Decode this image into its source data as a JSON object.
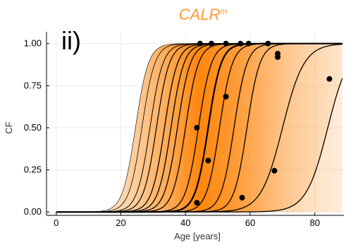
{
  "chart_data": {
    "type": "line",
    "title": "CALR",
    "title_superscript": "m",
    "panel_label": "ii)",
    "xlabel": "Age [years]",
    "ylabel": "CF",
    "xlim": [
      -3,
      89
    ],
    "ylim": [
      -0.02,
      1.07
    ],
    "x_ticks": [
      0,
      20,
      40,
      60,
      80
    ],
    "y_ticks": [
      0.0,
      0.25,
      0.5,
      0.75,
      1.0
    ],
    "y_tick_labels": [
      "0.00",
      "0.25",
      "0.50",
      "0.75",
      "1.00"
    ],
    "grid": true,
    "legend": "none",
    "colors": {
      "accent": "#ff9933",
      "fill": "#ff8000",
      "curve": "#000000",
      "point": "#000000"
    },
    "series": [
      {
        "midpoint": 24.5,
        "slope": 0.5
      },
      {
        "midpoint": 26.5,
        "slope": 0.5
      },
      {
        "midpoint": 29,
        "slope": 0.5
      },
      {
        "midpoint": 31,
        "slope": 0.5
      },
      {
        "midpoint": 33.5,
        "slope": 0.5
      },
      {
        "midpoint": 35.5,
        "slope": 0.5
      },
      {
        "midpoint": 37.5,
        "slope": 0.5
      },
      {
        "midpoint": 40,
        "slope": 0.5
      },
      {
        "midpoint": 44,
        "slope": 0.5
      },
      {
        "midpoint": 47,
        "slope": 0.5
      },
      {
        "midpoint": 50.5,
        "slope": 0.5
      },
      {
        "midpoint": 55,
        "slope": 0.5
      },
      {
        "midpoint": 59,
        "slope": 0.5
      },
      {
        "midpoint": 70,
        "slope": 0.3
      },
      {
        "midpoint": 84,
        "slope": 0.3
      }
    ],
    "points": [
      {
        "x": 44.5,
        "y": 1.0
      },
      {
        "x": 48,
        "y": 1.0
      },
      {
        "x": 52.5,
        "y": 1.0
      },
      {
        "x": 57,
        "y": 1.0
      },
      {
        "x": 59.5,
        "y": 1.0
      },
      {
        "x": 65.5,
        "y": 1.0
      },
      {
        "x": 68.5,
        "y": 0.94
      },
      {
        "x": 68.5,
        "y": 0.92
      },
      {
        "x": 52.5,
        "y": 0.685
      },
      {
        "x": 84.5,
        "y": 0.79
      },
      {
        "x": 43.5,
        "y": 0.5
      },
      {
        "x": 47,
        "y": 0.305
      },
      {
        "x": 67.5,
        "y": 0.245
      },
      {
        "x": 57.5,
        "y": 0.085
      },
      {
        "x": 43.5,
        "y": 0.055
      }
    ]
  }
}
